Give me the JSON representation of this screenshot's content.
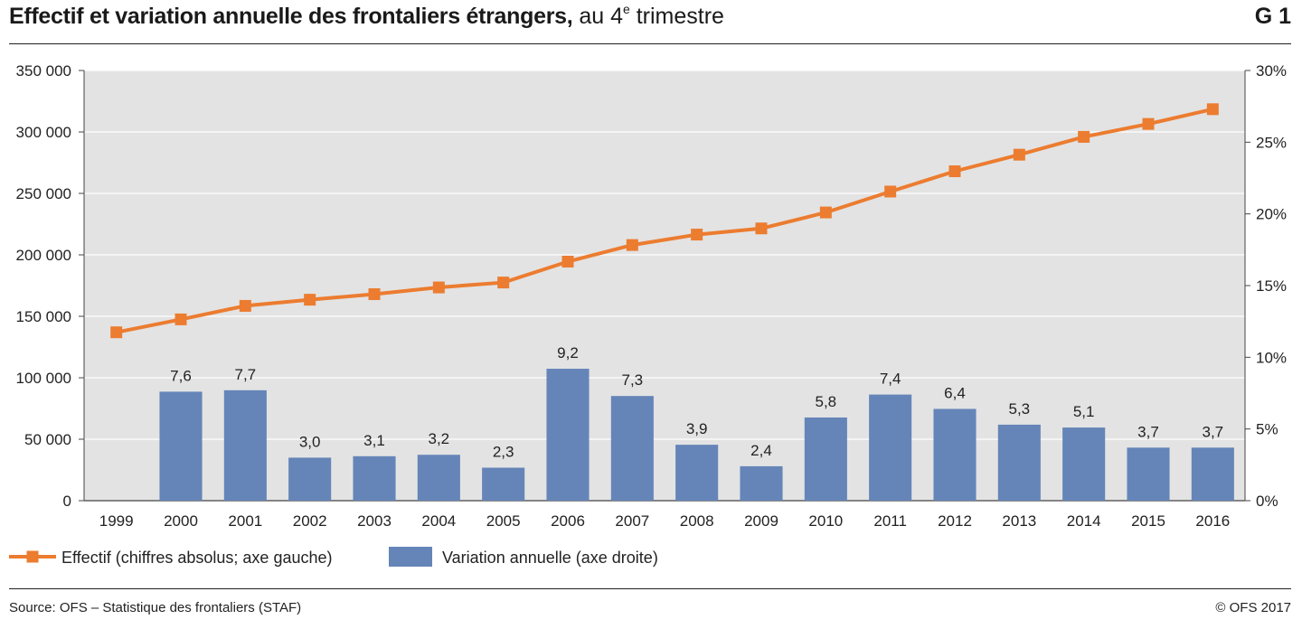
{
  "header": {
    "title_bold": "Effectif et variation annuelle des frontaliers étrangers,",
    "title_rest": " au 4",
    "title_sup": "e",
    "title_end": " trimestre",
    "figure_id": "G 1"
  },
  "footer": {
    "source": "Source: OFS – Statistique des frontaliers (STAF)",
    "copyright": "© OFS 2017"
  },
  "colors": {
    "plot_bg": "#e3e3e3",
    "line": "#ec7c30",
    "bar": "#6585b8"
  },
  "chart_data": {
    "type": "bar+line",
    "categories": [
      "1999",
      "2000",
      "2001",
      "2002",
      "2003",
      "2004",
      "2005",
      "2006",
      "2007",
      "2008",
      "2009",
      "2010",
      "2011",
      "2012",
      "2013",
      "2014",
      "2015",
      "2016"
    ],
    "series": [
      {
        "name": "Effectif (chiffres absolus; axe gauche)",
        "type": "line",
        "axis": "left",
        "values": [
          137000,
          147500,
          158500,
          163500,
          168000,
          173500,
          177500,
          194500,
          208000,
          216500,
          221500,
          234500,
          251500,
          268000,
          281500,
          296000,
          306500,
          318500
        ]
      },
      {
        "name": "Variation annuelle (axe droite)",
        "type": "bar",
        "axis": "right",
        "values": [
          null,
          7.6,
          7.7,
          3.0,
          3.1,
          3.2,
          2.3,
          9.2,
          7.3,
          3.9,
          2.4,
          5.8,
          7.4,
          6.4,
          5.3,
          5.1,
          3.7,
          3.7
        ],
        "labels": [
          "",
          "7,6",
          "7,7",
          "3,0",
          "3,1",
          "3,2",
          "2,3",
          "9,2",
          "7,3",
          "3,9",
          "2,4",
          "5,8",
          "7,4",
          "6,4",
          "5,3",
          "5,1",
          "3,7",
          "3,7"
        ]
      }
    ],
    "y_left": {
      "range": [
        0,
        350000
      ],
      "ticks": [
        0,
        50000,
        100000,
        150000,
        200000,
        250000,
        300000,
        350000
      ],
      "tick_labels": [
        "0",
        "50 000",
        "100 000",
        "150 000",
        "200 000",
        "250 000",
        "300 000",
        "350 000"
      ]
    },
    "y_right": {
      "range": [
        0,
        30
      ],
      "ticks": [
        0,
        5,
        10,
        15,
        20,
        25,
        30
      ],
      "tick_labels": [
        "0%",
        "5%",
        "10%",
        "15%",
        "20%",
        "25%",
        "30%"
      ]
    },
    "grid": true,
    "legend_position": "bottom-left"
  }
}
